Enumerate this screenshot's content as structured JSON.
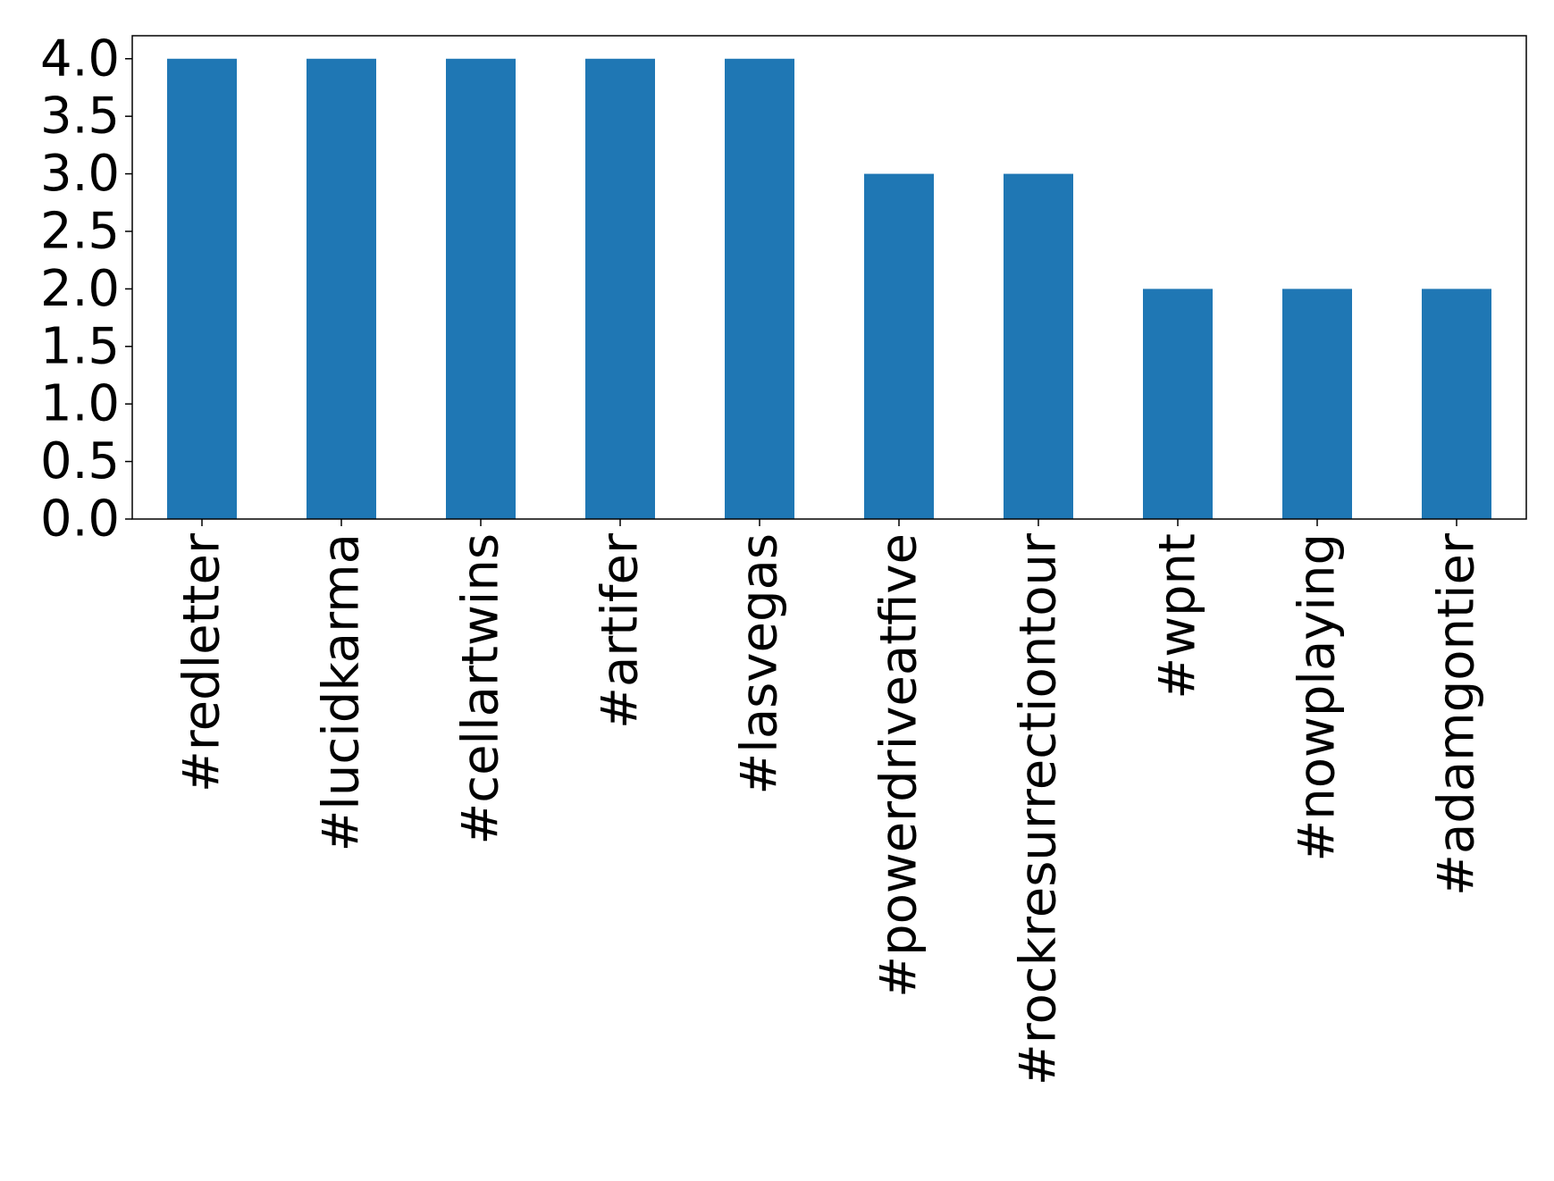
{
  "chart_data": {
    "type": "bar",
    "categories": [
      "#redletter",
      "#lucidkarma",
      "#cellartwins",
      "#artifer",
      "#lasvegas",
      "#powerdriveatfive",
      "#rockresurrectiontour",
      "#wpnt",
      "#nowplaying",
      "#adamgontier"
    ],
    "values": [
      4,
      4,
      4,
      4,
      4,
      3,
      3,
      2,
      2,
      2
    ],
    "color": "#1f77b4",
    "ylim": [
      0,
      4.2
    ],
    "yticks": [
      {
        "value": 0,
        "label": "0.0"
      },
      {
        "value": 0.5,
        "label": "0.5"
      },
      {
        "value": 1,
        "label": "1.0"
      },
      {
        "value": 1.5,
        "label": "1.5"
      },
      {
        "value": 2,
        "label": "2.0"
      },
      {
        "value": 2.5,
        "label": "2.5"
      },
      {
        "value": 3,
        "label": "3.0"
      },
      {
        "value": 3.5,
        "label": "3.5"
      },
      {
        "value": 4,
        "label": "4.0"
      }
    ],
    "grid": false
  }
}
